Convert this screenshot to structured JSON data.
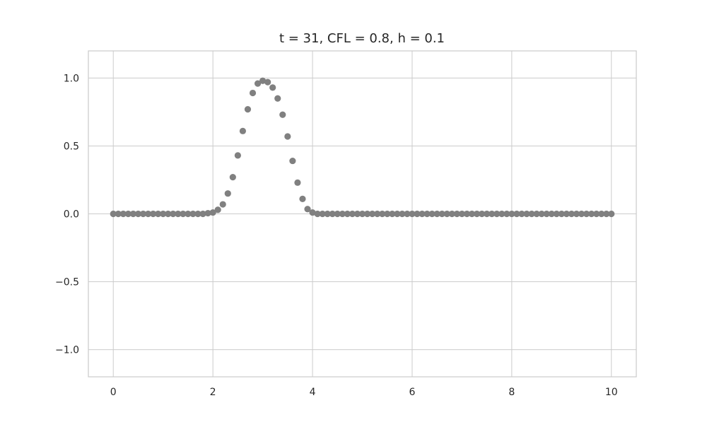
{
  "chart_data": {
    "type": "scatter",
    "title": "t = 31, CFL = 0.8, h = 0.1",
    "xlabel": "",
    "ylabel": "",
    "xlim": [
      -0.5,
      10.5
    ],
    "ylim": [
      -1.2,
      1.2
    ],
    "xticks": [
      0,
      2,
      4,
      6,
      8,
      10
    ],
    "xtick_labels": [
      "0",
      "2",
      "4",
      "6",
      "8",
      "10"
    ],
    "yticks": [
      -1.0,
      -0.5,
      0.0,
      0.5,
      1.0
    ],
    "ytick_labels": [
      "−1.0",
      "−0.5",
      "0.0",
      "0.5",
      "1.0"
    ],
    "grid": true,
    "marker_color": "#808080",
    "series": [
      {
        "x": [
          0.0,
          0.1,
          0.2,
          0.3,
          0.4,
          0.5,
          0.6,
          0.7,
          0.8,
          0.9,
          1.0,
          1.1,
          1.2,
          1.3,
          1.4,
          1.5,
          1.6,
          1.7,
          1.8,
          1.9,
          2.0,
          2.1,
          2.2,
          2.3,
          2.4,
          2.5,
          2.6,
          2.7,
          2.8,
          2.9,
          3.0,
          3.1,
          3.2,
          3.3,
          3.4,
          3.5,
          3.6,
          3.7,
          3.8,
          3.9,
          4.0,
          4.1,
          4.2,
          4.3,
          4.4,
          4.5,
          4.6,
          4.7,
          4.8,
          4.9,
          5.0,
          5.1,
          5.2,
          5.3,
          5.4,
          5.5,
          5.6,
          5.7,
          5.8,
          5.9,
          6.0,
          6.1,
          6.2,
          6.3,
          6.4,
          6.5,
          6.6,
          6.7,
          6.8,
          6.9,
          7.0,
          7.1,
          7.2,
          7.3,
          7.4,
          7.5,
          7.6,
          7.7,
          7.8,
          7.9,
          8.0,
          8.1,
          8.2,
          8.3,
          8.4,
          8.5,
          8.6,
          8.7,
          8.8,
          8.9,
          9.0,
          9.1,
          9.2,
          9.3,
          9.4,
          9.5,
          9.6,
          9.7,
          9.8,
          9.9,
          10.0
        ],
        "y": [
          0,
          0,
          0,
          0,
          0,
          0,
          0,
          0,
          0,
          0,
          0,
          0,
          0,
          0,
          0,
          0,
          0,
          0,
          0,
          0.005,
          0.01,
          0.03,
          0.07,
          0.15,
          0.27,
          0.43,
          0.61,
          0.77,
          0.89,
          0.96,
          0.98,
          0.97,
          0.93,
          0.85,
          0.73,
          0.57,
          0.39,
          0.23,
          0.11,
          0.035,
          0.01,
          0,
          0,
          0,
          0,
          0,
          0,
          0,
          0,
          0,
          0,
          0,
          0,
          0,
          0,
          0,
          0,
          0,
          0,
          0,
          0,
          0,
          0,
          0,
          0,
          0,
          0,
          0,
          0,
          0,
          0,
          0,
          0,
          0,
          0,
          0,
          0,
          0,
          0,
          0,
          0,
          0,
          0,
          0,
          0,
          0,
          0,
          0,
          0,
          0,
          0,
          0,
          0,
          0,
          0,
          0,
          0,
          0,
          0,
          0,
          0
        ]
      }
    ]
  }
}
